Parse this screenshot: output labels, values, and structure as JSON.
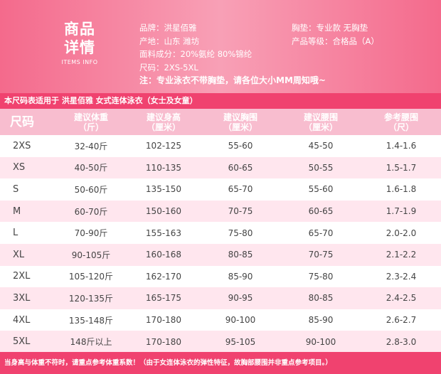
{
  "header": {
    "title_line1": "商品",
    "title_line2": "详情",
    "subtitle": "ITEMS INFO",
    "info_left": [
      "品牌：洪星佰雅",
      "产地：山东 潍坊",
      "面料成分：20%氨纶 80%锦纶",
      "尺码：2XS-5XL"
    ],
    "info_right": [
      "胸垫：专业款 无胸垫",
      "产品等级：合格品（A）"
    ],
    "note": "注：专业泳衣不带胸垫，请各位大小MM周知哦~"
  },
  "caption": "本尺码表适用于 洪星佰雅 女式连体泳衣（女士及女童）",
  "table": {
    "headers": [
      {
        "l1": "尺码",
        "l2": ""
      },
      {
        "l1": "建议体重",
        "l2": "（斤）"
      },
      {
        "l1": "建议身高",
        "l2": "（厘米）"
      },
      {
        "l1": "建议胸围",
        "l2": "（厘米）"
      },
      {
        "l1": "建议腰围",
        "l2": "（厘米）"
      },
      {
        "l1": "参考腰围",
        "l2": "（尺）"
      }
    ],
    "rows": [
      [
        "2XS",
        "32-40斤",
        "102-125",
        "55-60",
        "45-50",
        "1.4-1.6"
      ],
      [
        "XS",
        "40-50斤",
        "110-135",
        "60-65",
        "50-55",
        "1.5-1.7"
      ],
      [
        "S",
        "50-60斤",
        "135-150",
        "65-70",
        "55-60",
        "1.6-1.8"
      ],
      [
        "M",
        "60-70斤",
        "150-160",
        "70-75",
        "60-65",
        "1.7-1.9"
      ],
      [
        "L",
        "70-90斤",
        "155-163",
        "75-80",
        "65-70",
        "2.0-2.0"
      ],
      [
        "XL",
        "90-105斤",
        "160-168",
        "80-85",
        "70-75",
        "2.1-2.2"
      ],
      [
        "2XL",
        "105-120斤",
        "162-170",
        "85-90",
        "75-80",
        "2.3-2.4"
      ],
      [
        "3XL",
        "120-135斤",
        "165-175",
        "90-95",
        "80-85",
        "2.4-2.5"
      ],
      [
        "4XL",
        "135-148斤",
        "170-180",
        "90-100",
        "85-90",
        "2.6-2.7"
      ],
      [
        "5XL",
        "148斤以上",
        "170-180",
        "95-105",
        "90-100",
        "2.8-3.0"
      ]
    ]
  },
  "footer": "当身高与体重不符时，请重点参考体重系数！（由于女连体泳衣的弹性特征，故胸部腰围并非重点参考项目。）",
  "colors": {
    "header_pink": "#f46a8c",
    "accent_red": "#f0426f",
    "row_pink": "#ffe6ee",
    "header_row": "#f8bdcf"
  }
}
